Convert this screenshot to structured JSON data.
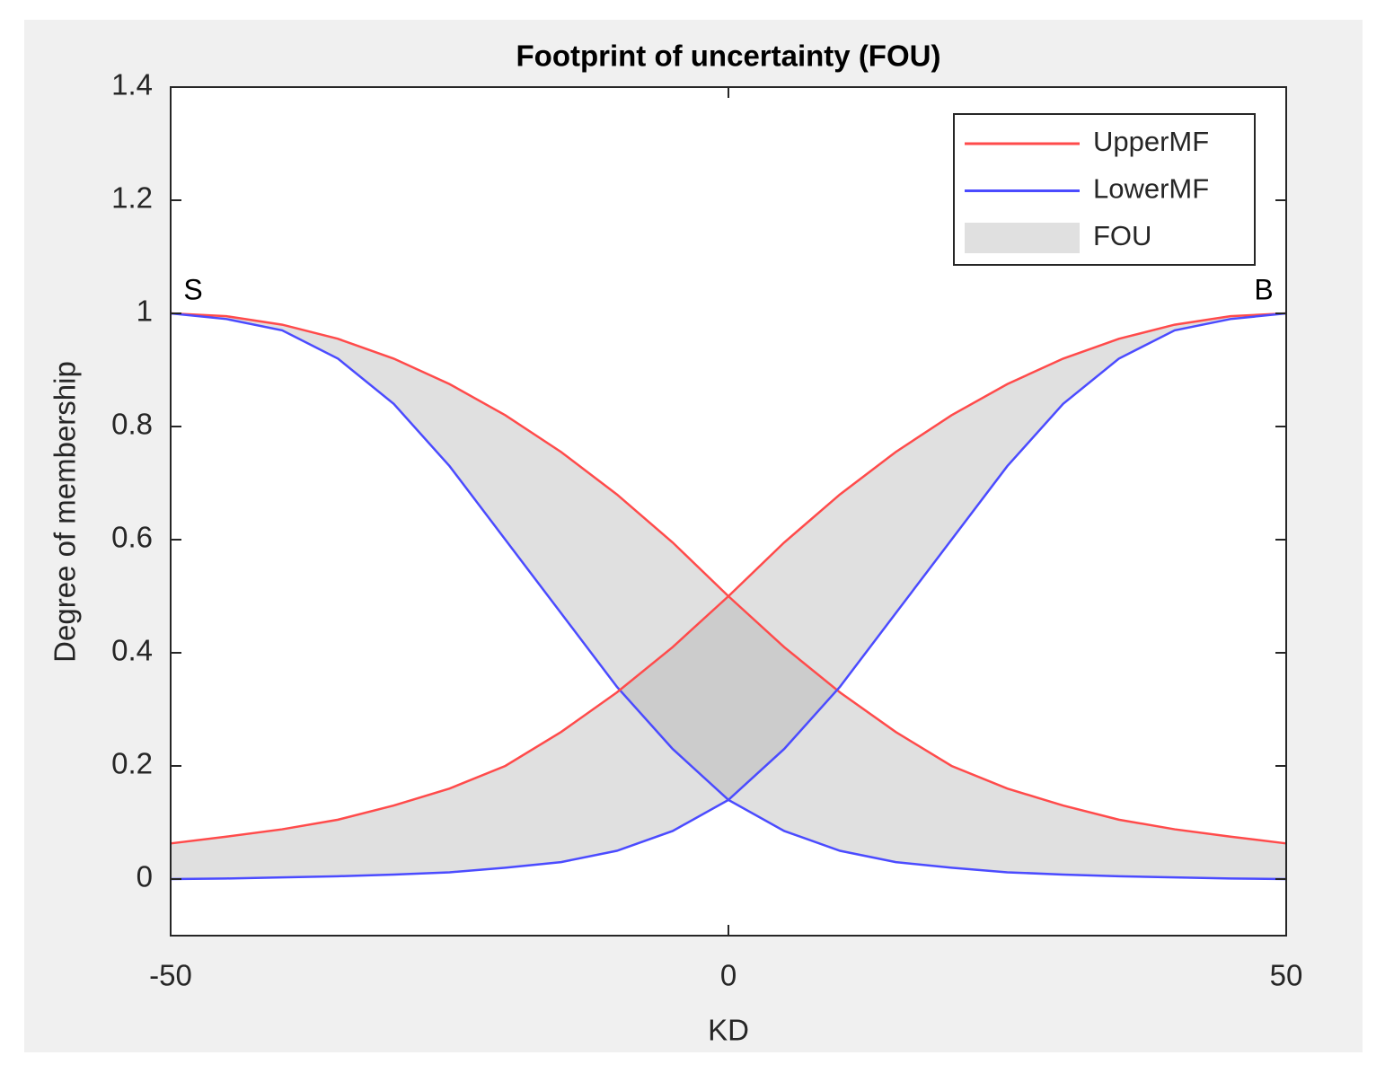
{
  "chart_data": {
    "type": "fou",
    "title": "Footprint of uncertainty (FOU)",
    "x_label": "KD",
    "y_label": "Degree of membership",
    "xlim": [
      -50,
      50
    ],
    "xticks": [
      -50,
      0,
      50
    ],
    "ylim": [
      -0.1,
      1.4
    ],
    "yticks": [
      0,
      0.2,
      0.4,
      0.6,
      0.8,
      1,
      1.2,
      1.4
    ],
    "legend_position": "upper right",
    "legend": [
      {
        "name": "UpperMF",
        "color": "#ff4b4b"
      },
      {
        "name": "LowerMF",
        "color": "#4b4bff"
      },
      {
        "name": "FOU",
        "color": "#a6a6a6"
      }
    ],
    "x": [
      -50,
      -45,
      -40,
      -35,
      -30,
      -25,
      -20,
      -15,
      -10,
      -5,
      0,
      5,
      10,
      15,
      20,
      25,
      30,
      35,
      40,
      45,
      50
    ],
    "membership_functions": [
      {
        "label": "S",
        "upper": [
          1.0,
          0.995,
          0.98,
          0.955,
          0.92,
          0.875,
          0.82,
          0.755,
          0.68,
          0.595,
          0.5,
          0.41,
          0.33,
          0.26,
          0.2,
          0.16,
          0.13,
          0.105,
          0.088,
          0.075,
          0.063
        ],
        "lower": [
          1.0,
          0.99,
          0.97,
          0.92,
          0.84,
          0.73,
          0.6,
          0.47,
          0.34,
          0.23,
          0.14,
          0.085,
          0.05,
          0.03,
          0.02,
          0.012,
          0.008,
          0.005,
          0.003,
          0.001,
          0.0
        ]
      },
      {
        "label": "B",
        "upper": [
          0.063,
          0.075,
          0.088,
          0.105,
          0.13,
          0.16,
          0.2,
          0.26,
          0.33,
          0.41,
          0.5,
          0.595,
          0.68,
          0.755,
          0.82,
          0.875,
          0.92,
          0.955,
          0.98,
          0.995,
          1.0
        ],
        "lower": [
          0.0,
          0.001,
          0.003,
          0.005,
          0.008,
          0.012,
          0.02,
          0.03,
          0.05,
          0.085,
          0.14,
          0.23,
          0.34,
          0.47,
          0.6,
          0.73,
          0.84,
          0.92,
          0.97,
          0.99,
          1.0
        ]
      }
    ]
  }
}
